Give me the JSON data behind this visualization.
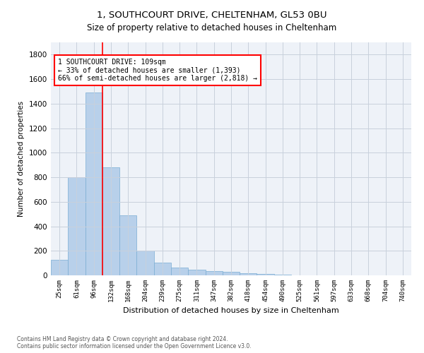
{
  "title": "1, SOUTHCOURT DRIVE, CHELTENHAM, GL53 0BU",
  "subtitle": "Size of property relative to detached houses in Cheltenham",
  "xlabel": "Distribution of detached houses by size in Cheltenham",
  "ylabel": "Number of detached properties",
  "bar_color": "#b8d0ea",
  "bar_edge_color": "#7aadd4",
  "categories": [
    "25sqm",
    "61sqm",
    "96sqm",
    "132sqm",
    "168sqm",
    "204sqm",
    "239sqm",
    "275sqm",
    "311sqm",
    "347sqm",
    "382sqm",
    "418sqm",
    "454sqm",
    "490sqm",
    "525sqm",
    "561sqm",
    "597sqm",
    "633sqm",
    "668sqm",
    "704sqm",
    "740sqm"
  ],
  "values": [
    125,
    800,
    1490,
    880,
    490,
    200,
    105,
    65,
    45,
    35,
    30,
    20,
    10,
    3,
    0,
    0,
    0,
    0,
    0,
    0,
    0
  ],
  "ylim": [
    0,
    1900
  ],
  "yticks": [
    0,
    200,
    400,
    600,
    800,
    1000,
    1200,
    1400,
    1600,
    1800
  ],
  "red_line_x": 2.5,
  "annotation_line1": "1 SOUTHCOURT DRIVE: 109sqm",
  "annotation_line2": "← 33% of detached houses are smaller (1,393)",
  "annotation_line3": "66% of semi-detached houses are larger (2,818) →",
  "footer_line1": "Contains HM Land Registry data © Crown copyright and database right 2024.",
  "footer_line2": "Contains public sector information licensed under the Open Government Licence v3.0.",
  "background_color": "#ffffff",
  "axes_bg_color": "#eef2f8",
  "grid_color": "#c8d0dc"
}
